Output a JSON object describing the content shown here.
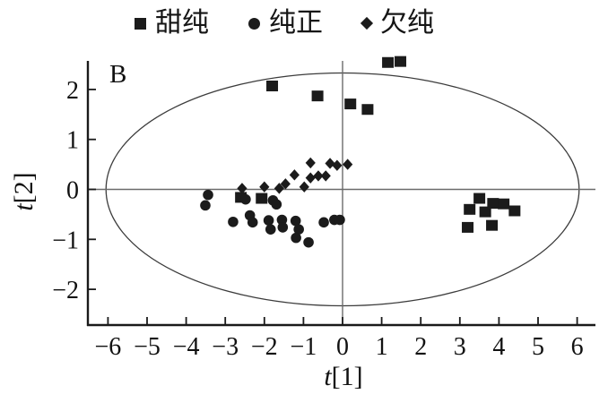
{
  "figure": {
    "panel_label": "B"
  },
  "legend": {
    "position": "top",
    "items": [
      {
        "label": "甜纯",
        "marker": "square"
      },
      {
        "label": "纯正",
        "marker": "circle"
      },
      {
        "label": "欠纯",
        "marker": "diamond"
      }
    ]
  },
  "chart_data": {
    "type": "scatter",
    "title": "",
    "xlabel": "t[1]",
    "ylabel": "t[2]",
    "xlim": [
      -6.5,
      6.4
    ],
    "ylim": [
      -2.7,
      2.6
    ],
    "x_ticks": [
      -6,
      -5,
      -4,
      -3,
      -2,
      -1,
      0,
      1,
      2,
      3,
      4,
      5,
      6
    ],
    "y_ticks": [
      -2,
      -1,
      0,
      1,
      2
    ],
    "grid": false,
    "reference_lines": {
      "vertical_x": 0,
      "horizontal_y": 0
    },
    "hotelling_ellipse": {
      "cx": 0,
      "cy": 0,
      "rx": 6.05,
      "ry": 2.33
    },
    "series": [
      {
        "name": "甜纯",
        "marker": "square",
        "points": [
          [
            -1.8,
            2.07
          ],
          [
            -0.64,
            1.87
          ],
          [
            0.2,
            1.71
          ],
          [
            0.64,
            1.6
          ],
          [
            1.16,
            2.54
          ],
          [
            1.48,
            2.56
          ],
          [
            -2.6,
            -0.16
          ],
          [
            -2.07,
            -0.18
          ],
          [
            3.25,
            -0.4
          ],
          [
            3.5,
            -0.18
          ],
          [
            3.65,
            -0.45
          ],
          [
            3.85,
            -0.28
          ],
          [
            4.12,
            -0.29
          ],
          [
            4.4,
            -0.43
          ],
          [
            3.2,
            -0.76
          ],
          [
            3.82,
            -0.72
          ]
        ]
      },
      {
        "name": "纯正",
        "marker": "circle",
        "points": [
          [
            -3.44,
            -0.11
          ],
          [
            -3.51,
            -0.32
          ],
          [
            -2.8,
            -0.65
          ],
          [
            -2.48,
            -0.2
          ],
          [
            -2.37,
            -0.52
          ],
          [
            -2.3,
            -0.66
          ],
          [
            -1.89,
            -0.62
          ],
          [
            -1.84,
            -0.8
          ],
          [
            -1.78,
            -0.22
          ],
          [
            -1.69,
            -0.3
          ],
          [
            -1.55,
            -0.61
          ],
          [
            -1.53,
            -0.76
          ],
          [
            -1.2,
            -0.63
          ],
          [
            -1.12,
            -0.8
          ],
          [
            -1.19,
            -0.97
          ],
          [
            -0.87,
            -1.06
          ],
          [
            -0.48,
            -0.66
          ],
          [
            -0.21,
            -0.61
          ],
          [
            -0.07,
            -0.61
          ]
        ]
      },
      {
        "name": "欠纯",
        "marker": "diamond",
        "points": [
          [
            -2.57,
            0.02
          ],
          [
            -2.0,
            0.05
          ],
          [
            -1.62,
            0.02
          ],
          [
            -1.46,
            0.11
          ],
          [
            -1.23,
            0.29
          ],
          [
            -0.98,
            0.05
          ],
          [
            -0.82,
            0.23
          ],
          [
            -0.62,
            0.27
          ],
          [
            -0.43,
            0.27
          ],
          [
            -0.82,
            0.53
          ],
          [
            -0.32,
            0.52
          ],
          [
            -0.14,
            0.48
          ],
          [
            0.13,
            0.5
          ]
        ]
      }
    ]
  },
  "colors": {
    "marker": "#1b1b1b",
    "axis_line": "#1a1a1a",
    "zero_line": "#6b6b6b",
    "ellipse_line": "#3c3c3c",
    "text": "#111111",
    "background": "#ffffff"
  }
}
